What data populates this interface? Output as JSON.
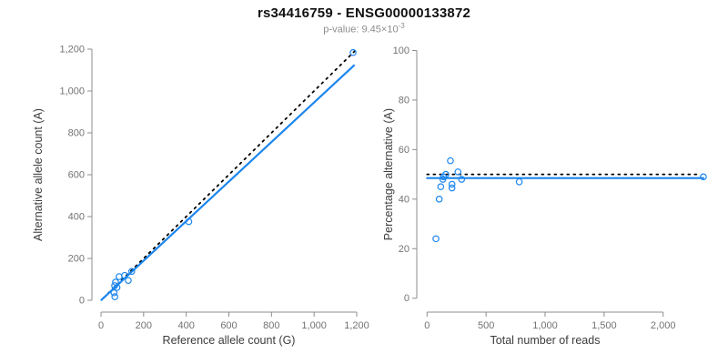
{
  "header": {
    "title": "rs34416759 - ENSG00000133872",
    "subtitle": {
      "label": "p-value: ",
      "mantissa": "9.45×10",
      "exponent": "-3"
    }
  },
  "colors": {
    "accent_blue": "#1c86ee",
    "reference_black": "#000000",
    "axis_line": "#8c8c8c",
    "tick_label": "#737373",
    "axis_title": "#3d3d3d",
    "title": "#111111",
    "subtitle": "#8c8c8c",
    "background": "#ffffff"
  },
  "chart_data": [
    {
      "type": "scatter",
      "panel": "left",
      "xlabel": "Reference allele count (G)",
      "ylabel": "Alternative allele count (A)",
      "xlim": [
        0,
        1200
      ],
      "ylim": [
        0,
        1200
      ],
      "xticks": [
        0,
        200,
        400,
        600,
        800,
        1000,
        1200
      ],
      "yticks": [
        0,
        200,
        400,
        600,
        800,
        1000,
        1200
      ],
      "tick_format": "comma",
      "point_color": "#1c86ee",
      "points": [
        [
          61,
          36
        ],
        [
          65,
          17
        ],
        [
          64,
          70
        ],
        [
          75,
          61
        ],
        [
          68,
          87
        ],
        [
          85,
          113
        ],
        [
          111,
          119
        ],
        [
          128,
          95
        ],
        [
          144,
          138
        ],
        [
          412,
          376
        ],
        [
          1183,
          1184
        ]
      ],
      "lines": [
        {
          "name": "identity-line",
          "role": "x-equals-y-reference",
          "style": "dotted",
          "color": "#000000",
          "width": 1.8,
          "from": [
            12,
            12
          ],
          "to": [
            1192,
            1192
          ]
        },
        {
          "name": "fit-line",
          "role": "regression-fit",
          "style": "solid",
          "color": "#1c86ee",
          "width": 2.2,
          "from": [
            2,
            2
          ],
          "to": [
            1187,
            1122
          ]
        }
      ]
    },
    {
      "type": "scatter",
      "panel": "right",
      "xlabel": "Total number of reads",
      "ylabel": "Percentage alternative (A)",
      "xlim": [
        0,
        2000
      ],
      "ylim": [
        0,
        100
      ],
      "xticks": [
        0,
        500,
        1000,
        1500,
        2000
      ],
      "yticks": [
        0,
        20,
        40,
        60,
        80,
        100
      ],
      "tick_format": "comma",
      "point_color": "#1c86ee",
      "points": [
        [
          75,
          24
        ],
        [
          103,
          40
        ],
        [
          116,
          45
        ],
        [
          134,
          48
        ],
        [
          139,
          49
        ],
        [
          159,
          50
        ],
        [
          198,
          55.5
        ],
        [
          211,
          46
        ],
        [
          211,
          44.5
        ],
        [
          262,
          51
        ],
        [
          293,
          48
        ],
        [
          781,
          47
        ],
        [
          2341,
          49
        ]
      ],
      "lines": [
        {
          "name": "expected-line",
          "role": "fifty-percent-reference",
          "style": "dotted",
          "color": "#000000",
          "width": 1.8,
          "from": [
            0,
            50
          ],
          "to": [
            2320,
            50
          ]
        },
        {
          "name": "fit-line",
          "role": "mean-percentage",
          "style": "solid",
          "color": "#1c86ee",
          "width": 2.2,
          "from": [
            0,
            48.5
          ],
          "to": [
            2341,
            48.5
          ]
        }
      ]
    }
  ]
}
